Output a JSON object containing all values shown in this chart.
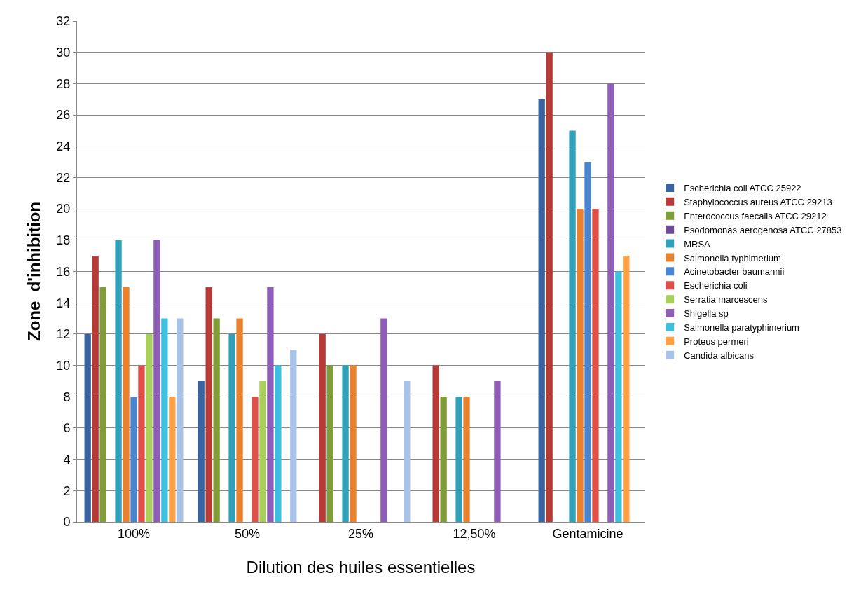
{
  "chart_data": {
    "type": "bar",
    "xlabel": "Dilution des huiles essentielles",
    "ylabel": "Zone  d'inhibition",
    "categories": [
      "100%",
      "50%",
      "25%",
      "12,50%",
      "Gentamicine"
    ],
    "series": [
      {
        "name": "Escherichia coli ATCC 25922",
        "color": "#3a64a0",
        "values": [
          12,
          9,
          null,
          null,
          27
        ]
      },
      {
        "name": "Staphylococcus aureus ATCC 29213",
        "color": "#b83a37",
        "values": [
          17,
          15,
          12,
          10,
          30
        ]
      },
      {
        "name": "Enterococcus faecalis ATCC 29212",
        "color": "#7f9e3a",
        "values": [
          15,
          13,
          10,
          8,
          null
        ]
      },
      {
        "name": "Psodomonas aerogenosa ATCC 27853",
        "color": "#6e4c94",
        "values": [
          null,
          null,
          null,
          null,
          null
        ]
      },
      {
        "name": "MRSA",
        "color": "#31a0b9",
        "values": [
          18,
          12,
          10,
          8,
          25
        ]
      },
      {
        "name": "Salmonella typhimerium",
        "color": "#e9822e",
        "values": [
          15,
          13,
          10,
          8,
          20
        ]
      },
      {
        "name": "Acinetobacter baumannii",
        "color": "#4a86cf",
        "values": [
          8,
          null,
          null,
          null,
          23
        ]
      },
      {
        "name": "Escherichia coli",
        "color": "#e0504a",
        "values": [
          10,
          8,
          null,
          null,
          20
        ]
      },
      {
        "name": "Serratia marcescens",
        "color": "#a9d15a",
        "values": [
          12,
          9,
          null,
          null,
          null
        ]
      },
      {
        "name": "Shigella sp",
        "color": "#8d5db8",
        "values": [
          18,
          15,
          13,
          9,
          28
        ]
      },
      {
        "name": "Salmonella paratyphimerium",
        "color": "#3dc0de",
        "values": [
          13,
          10,
          null,
          null,
          16
        ]
      },
      {
        "name": "Proteus permeri",
        "color": "#ffa044",
        "values": [
          8,
          null,
          null,
          null,
          17
        ]
      },
      {
        "name": "Candida albicans",
        "color": "#a9c2e8",
        "values": [
          13,
          11,
          9,
          null,
          null
        ]
      }
    ],
    "ylim": [
      0,
      32
    ],
    "yticks": [
      0,
      2,
      4,
      6,
      8,
      10,
      12,
      14,
      16,
      18,
      20,
      22,
      24,
      26,
      28,
      30,
      32
    ],
    "grid": "y",
    "legend": "right"
  }
}
